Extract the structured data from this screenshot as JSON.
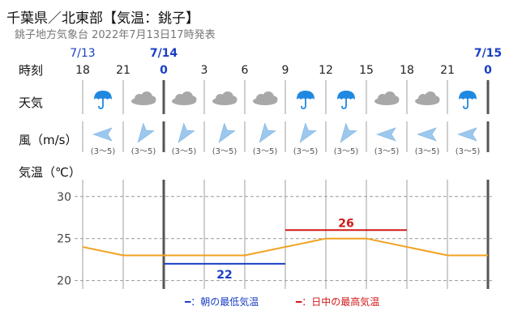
{
  "header": {
    "title": "千葉県／北東部【気温：銚子】",
    "subtitle": "銚子地方気象台 2022年7月13日17時発表"
  },
  "labels": {
    "time": "時刻",
    "weather": "天気",
    "wind": "風（m/s）",
    "temperature": "気温（℃）"
  },
  "dates": [
    "7/13",
    "7/14",
    "7/15"
  ],
  "hours": [
    "18",
    "21",
    "0",
    "3",
    "6",
    "9",
    "12",
    "15",
    "18",
    "21",
    "0"
  ],
  "weather": [
    "rain-umbrella-icon",
    "cloud-icon",
    "cloud-icon",
    "cloud-icon",
    "cloud-icon",
    "rain-umbrella-icon",
    "rain-umbrella-icon",
    "cloud-icon",
    "cloud-icon",
    "rain-umbrella-icon"
  ],
  "wind": {
    "text": [
      "(3～5)",
      "(3～5)",
      "(3～5)",
      "(3～5)",
      "(3～5)",
      "(3～5)",
      "(3～5)",
      "(3～5)",
      "(3～5)",
      "(3～5)"
    ],
    "arrows": [
      "wind-arrow-icon-w",
      "wind-arrow-icon-ne",
      "wind-arrow-icon-ne",
      "wind-arrow-icon-ne",
      "wind-arrow-icon-ne",
      "wind-arrow-icon-ne",
      "wind-arrow-icon-ne",
      "wind-arrow-icon-w",
      "wind-arrow-icon-w",
      "wind-arrow-icon-w"
    ]
  },
  "legend": {
    "min": "━：朝の最低気温",
    "max": "━：日中の最高気温"
  },
  "colors": {
    "date": "#1a3fc4",
    "line": "#f0a21e",
    "min": "#1a3fc4",
    "max": "#d01818",
    "grid": "#999999",
    "icon": "#1f88e0",
    "cloud": "#a8a8a8",
    "wind": "#9cc8ee"
  },
  "chart_data": {
    "type": "line",
    "ylabel": "気温（℃）",
    "ylim": [
      19,
      32
    ],
    "yticks": [
      20,
      25,
      30
    ],
    "hours": [
      "18",
      "21",
      "0",
      "3",
      "6",
      "9",
      "12",
      "15",
      "18",
      "21",
      "0"
    ],
    "series": [
      {
        "values": [
          24,
          23,
          23,
          23,
          23,
          24,
          25,
          25,
          24,
          23,
          23
        ]
      }
    ],
    "min_temp": {
      "label": "22",
      "value": 22,
      "from": "0",
      "to": "9"
    },
    "max_temp": {
      "label": "26",
      "value": 26,
      "from": "9",
      "to": "18"
    },
    "grid": true
  }
}
